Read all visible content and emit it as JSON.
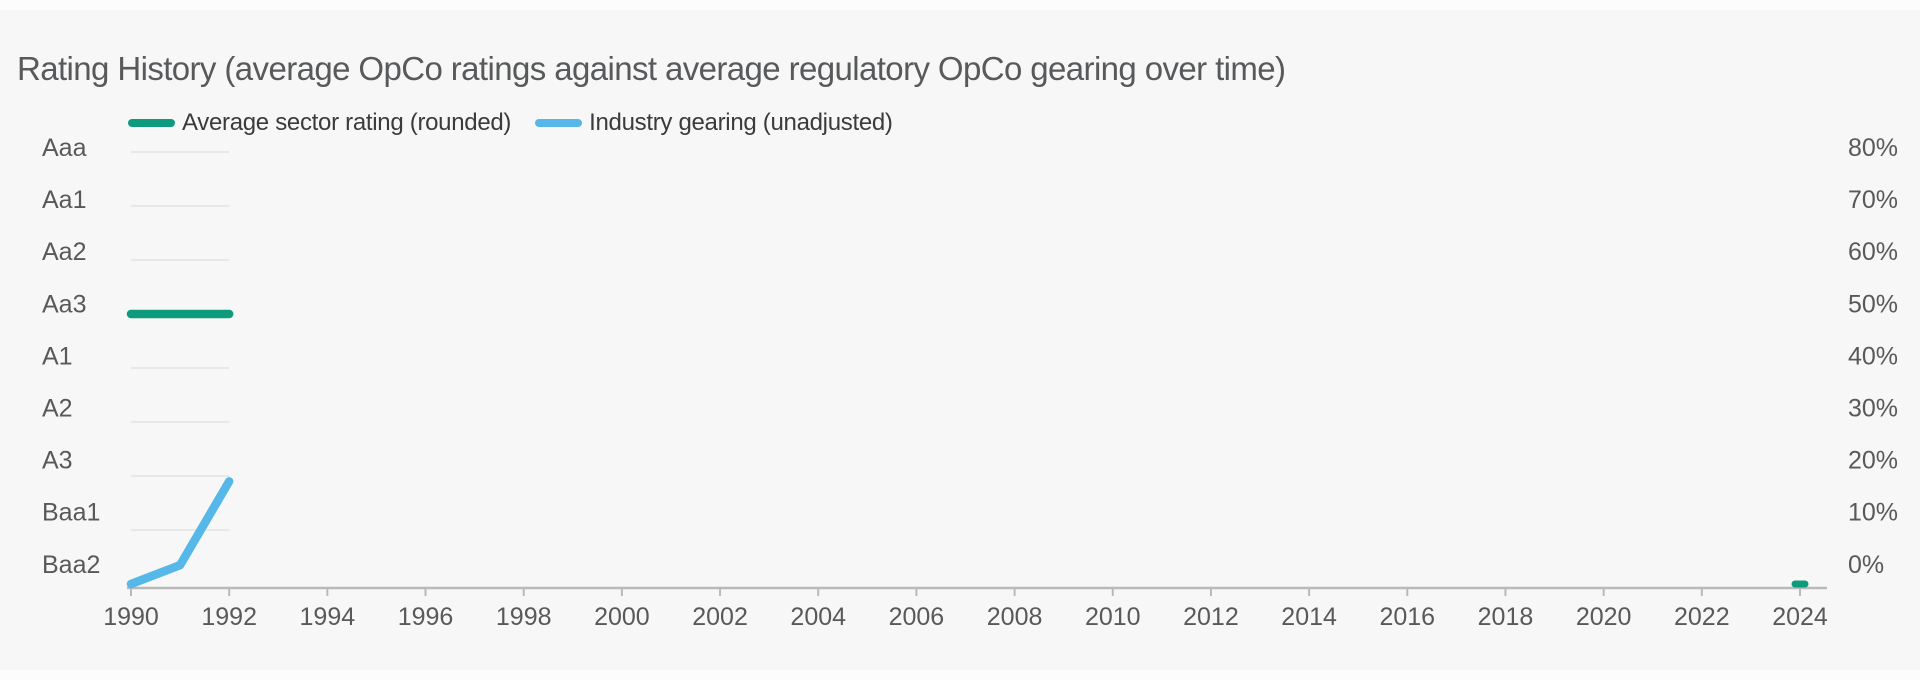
{
  "title": "Rating History (average OpCo ratings against average regulatory OpCo gearing over time)",
  "legend": {
    "items": [
      {
        "label": "Average sector rating (rounded)",
        "color": "#0e9b7d"
      },
      {
        "label": "Industry gearing (unadjusted)",
        "color": "#55b8e8"
      }
    ]
  },
  "colors": {
    "background": "#f7f7f7",
    "title_text": "#58595b",
    "axis_text": "#595959",
    "legend_text": "#3b3b3b",
    "axis_line": "#b9b9b9",
    "gridline": "#e8e8e8",
    "rating_series": "#0e9b7d",
    "gearing_series": "#55b8e8"
  },
  "chart_data": {
    "type": "line",
    "title": "Rating History (average OpCo ratings against average regulatory OpCo gearing over time)",
    "legend_position": "top",
    "grid": "short horizontal gridlines drawn only across the 1990-1992 data extent",
    "left_axis": {
      "kind": "rating-scale",
      "tick_labels_top_to_bottom": [
        "Aaa",
        "Aa1",
        "Aa2",
        "Aa3",
        "A1",
        "A2",
        "A3",
        "Baa1",
        "Baa2"
      ]
    },
    "right_axis": {
      "kind": "percent",
      "min": 0,
      "max": 80,
      "tick_labels_top_to_bottom": [
        "80%",
        "70%",
        "60%",
        "50%",
        "40%",
        "30%",
        "20%",
        "10%",
        "0%"
      ]
    },
    "x_axis": {
      "min": 1990,
      "max": 2024,
      "tick_step_years": 2,
      "tick_labels": [
        "1990",
        "1992",
        "1994",
        "1996",
        "1998",
        "2000",
        "2002",
        "2004",
        "2006",
        "2008",
        "2010",
        "2012",
        "2014",
        "2016",
        "2018",
        "2020",
        "2022",
        "2024"
      ]
    },
    "series": [
      {
        "name": "Average sector rating (rounded)",
        "axis": "left",
        "color": "#0e9b7d",
        "points": [
          {
            "year": 1990,
            "rating": "Aa3"
          },
          {
            "year": 1991,
            "rating": "Aa3"
          },
          {
            "year": 1992,
            "rating": "Aa3"
          },
          {
            "year": 2024,
            "rating": "Baa2"
          }
        ]
      },
      {
        "name": "Industry gearing (unadjusted)",
        "axis": "right",
        "color": "#55b8e8",
        "points": [
          {
            "year": 1990,
            "value_pct": 0
          },
          {
            "year": 1991,
            "value_pct": 3.5
          },
          {
            "year": 1992,
            "value_pct": 19
          }
        ]
      }
    ]
  }
}
